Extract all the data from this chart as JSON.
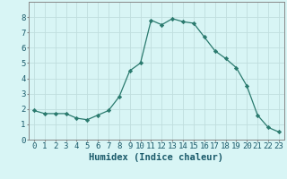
{
  "x": [
    0,
    1,
    2,
    3,
    4,
    5,
    6,
    7,
    8,
    9,
    10,
    11,
    12,
    13,
    14,
    15,
    16,
    17,
    18,
    19,
    20,
    21,
    22,
    23
  ],
  "y": [
    1.9,
    1.7,
    1.7,
    1.7,
    1.4,
    1.3,
    1.6,
    1.9,
    2.8,
    4.5,
    5.0,
    7.8,
    7.5,
    7.9,
    7.7,
    7.6,
    6.7,
    5.8,
    5.3,
    4.7,
    3.5,
    1.6,
    0.8,
    0.5
  ],
  "line_color": "#2a7a6e",
  "marker": "D",
  "marker_size": 2.2,
  "bg_color": "#d8f5f5",
  "grid_color": "#c0dede",
  "xlabel": "Humidex (Indice chaleur)",
  "xlabel_fontsize": 7.5,
  "tick_fontsize": 6.5,
  "xlim": [
    -0.5,
    23.5
  ],
  "ylim": [
    0,
    9
  ],
  "yticks": [
    0,
    1,
    2,
    3,
    4,
    5,
    6,
    7,
    8
  ],
  "xticks": [
    0,
    1,
    2,
    3,
    4,
    5,
    6,
    7,
    8,
    9,
    10,
    11,
    12,
    13,
    14,
    15,
    16,
    17,
    18,
    19,
    20,
    21,
    22,
    23
  ],
  "spine_color": "#888888"
}
